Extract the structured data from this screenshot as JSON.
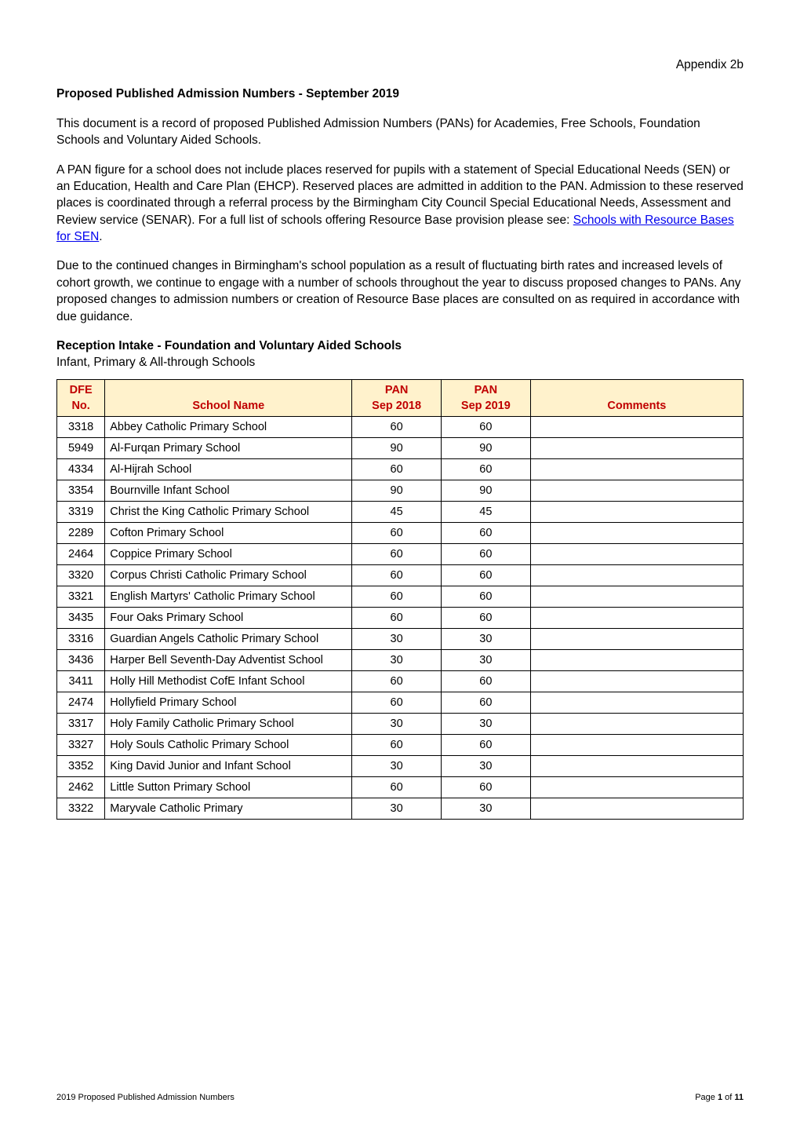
{
  "appendix": "Appendix 2b",
  "title": "Proposed Published Admission Numbers - September 2019",
  "para1": "This document is a record of proposed Published Admission Numbers (PANs) for Academies, Free Schools, Foundation Schools and Voluntary Aided Schools.",
  "para2_pre": "A PAN figure for a school does not include places reserved for pupils with a statement of Special Educational Needs (SEN) or an Education, Health and Care Plan (EHCP). Reserved places are admitted in addition to the PAN. Admission to these reserved places is coordinated through a referral process by the Birmingham City Council Special Educational Needs, Assessment and Review service (SENAR). For a full list of schools offering Resource Base provision please see: ",
  "para2_link": "Schools with Resource Bases for SEN",
  "para2_post": ".",
  "para3": "Due to the continued changes in Birmingham's school population as a result of fluctuating birth rates and increased levels of cohort growth, we continue to engage with a number of schools throughout the year to discuss proposed changes to PANs. Any proposed changes to admission numbers or creation of Resource Base places are consulted on as required in accordance with due guidance.",
  "section_heading": "Reception Intake - Foundation and Voluntary Aided Schools",
  "section_sub": "Infant, Primary & All-through Schools",
  "table": {
    "header_bg": "#fff2cc",
    "header_color": "#c00000",
    "columns": [
      "DFE No.",
      "School Name",
      "PAN Sep 2018",
      "PAN Sep 2019",
      "Comments"
    ],
    "col_h1a": "DFE",
    "col_h1b": "No.",
    "col_h2": "School Name",
    "col_h3a": "PAN",
    "col_h3b": "Sep 2018",
    "col_h4a": "PAN",
    "col_h4b": "Sep 2019",
    "col_h5": "Comments",
    "rows": [
      [
        "3318",
        "Abbey Catholic Primary School",
        "60",
        "60",
        ""
      ],
      [
        "5949",
        "Al-Furqan Primary School",
        "90",
        "90",
        ""
      ],
      [
        "4334",
        "Al-Hijrah School",
        "60",
        "60",
        ""
      ],
      [
        "3354",
        "Bournville Infant School",
        "90",
        "90",
        ""
      ],
      [
        "3319",
        "Christ the King Catholic Primary School",
        "45",
        "45",
        ""
      ],
      [
        "2289",
        "Cofton Primary School",
        "60",
        "60",
        ""
      ],
      [
        "2464",
        "Coppice Primary School",
        "60",
        "60",
        ""
      ],
      [
        "3320",
        "Corpus Christi Catholic Primary School",
        "60",
        "60",
        ""
      ],
      [
        "3321",
        "English Martyrs' Catholic Primary School",
        "60",
        "60",
        ""
      ],
      [
        "3435",
        "Four Oaks Primary School",
        "60",
        "60",
        ""
      ],
      [
        "3316",
        "Guardian Angels Catholic Primary School",
        "30",
        "30",
        ""
      ],
      [
        "3436",
        "Harper Bell Seventh-Day Adventist School",
        "30",
        "30",
        ""
      ],
      [
        "3411",
        "Holly Hill Methodist CofE Infant School",
        "60",
        "60",
        ""
      ],
      [
        "2474",
        "Hollyfield Primary School",
        "60",
        "60",
        ""
      ],
      [
        "3317",
        "Holy Family Catholic Primary School",
        "30",
        "30",
        ""
      ],
      [
        "3327",
        "Holy Souls Catholic Primary School",
        "60",
        "60",
        ""
      ],
      [
        "3352",
        "King David Junior and Infant School",
        "30",
        "30",
        ""
      ],
      [
        "2462",
        "Little Sutton Primary School",
        "60",
        "60",
        ""
      ],
      [
        "3322",
        "Maryvale Catholic Primary",
        "30",
        "30",
        ""
      ]
    ]
  },
  "footer_left": "2019 Proposed Published Admission Numbers",
  "footer_page_pre": "Page ",
  "footer_page_num": "1",
  "footer_page_mid": " of ",
  "footer_page_total": "11"
}
